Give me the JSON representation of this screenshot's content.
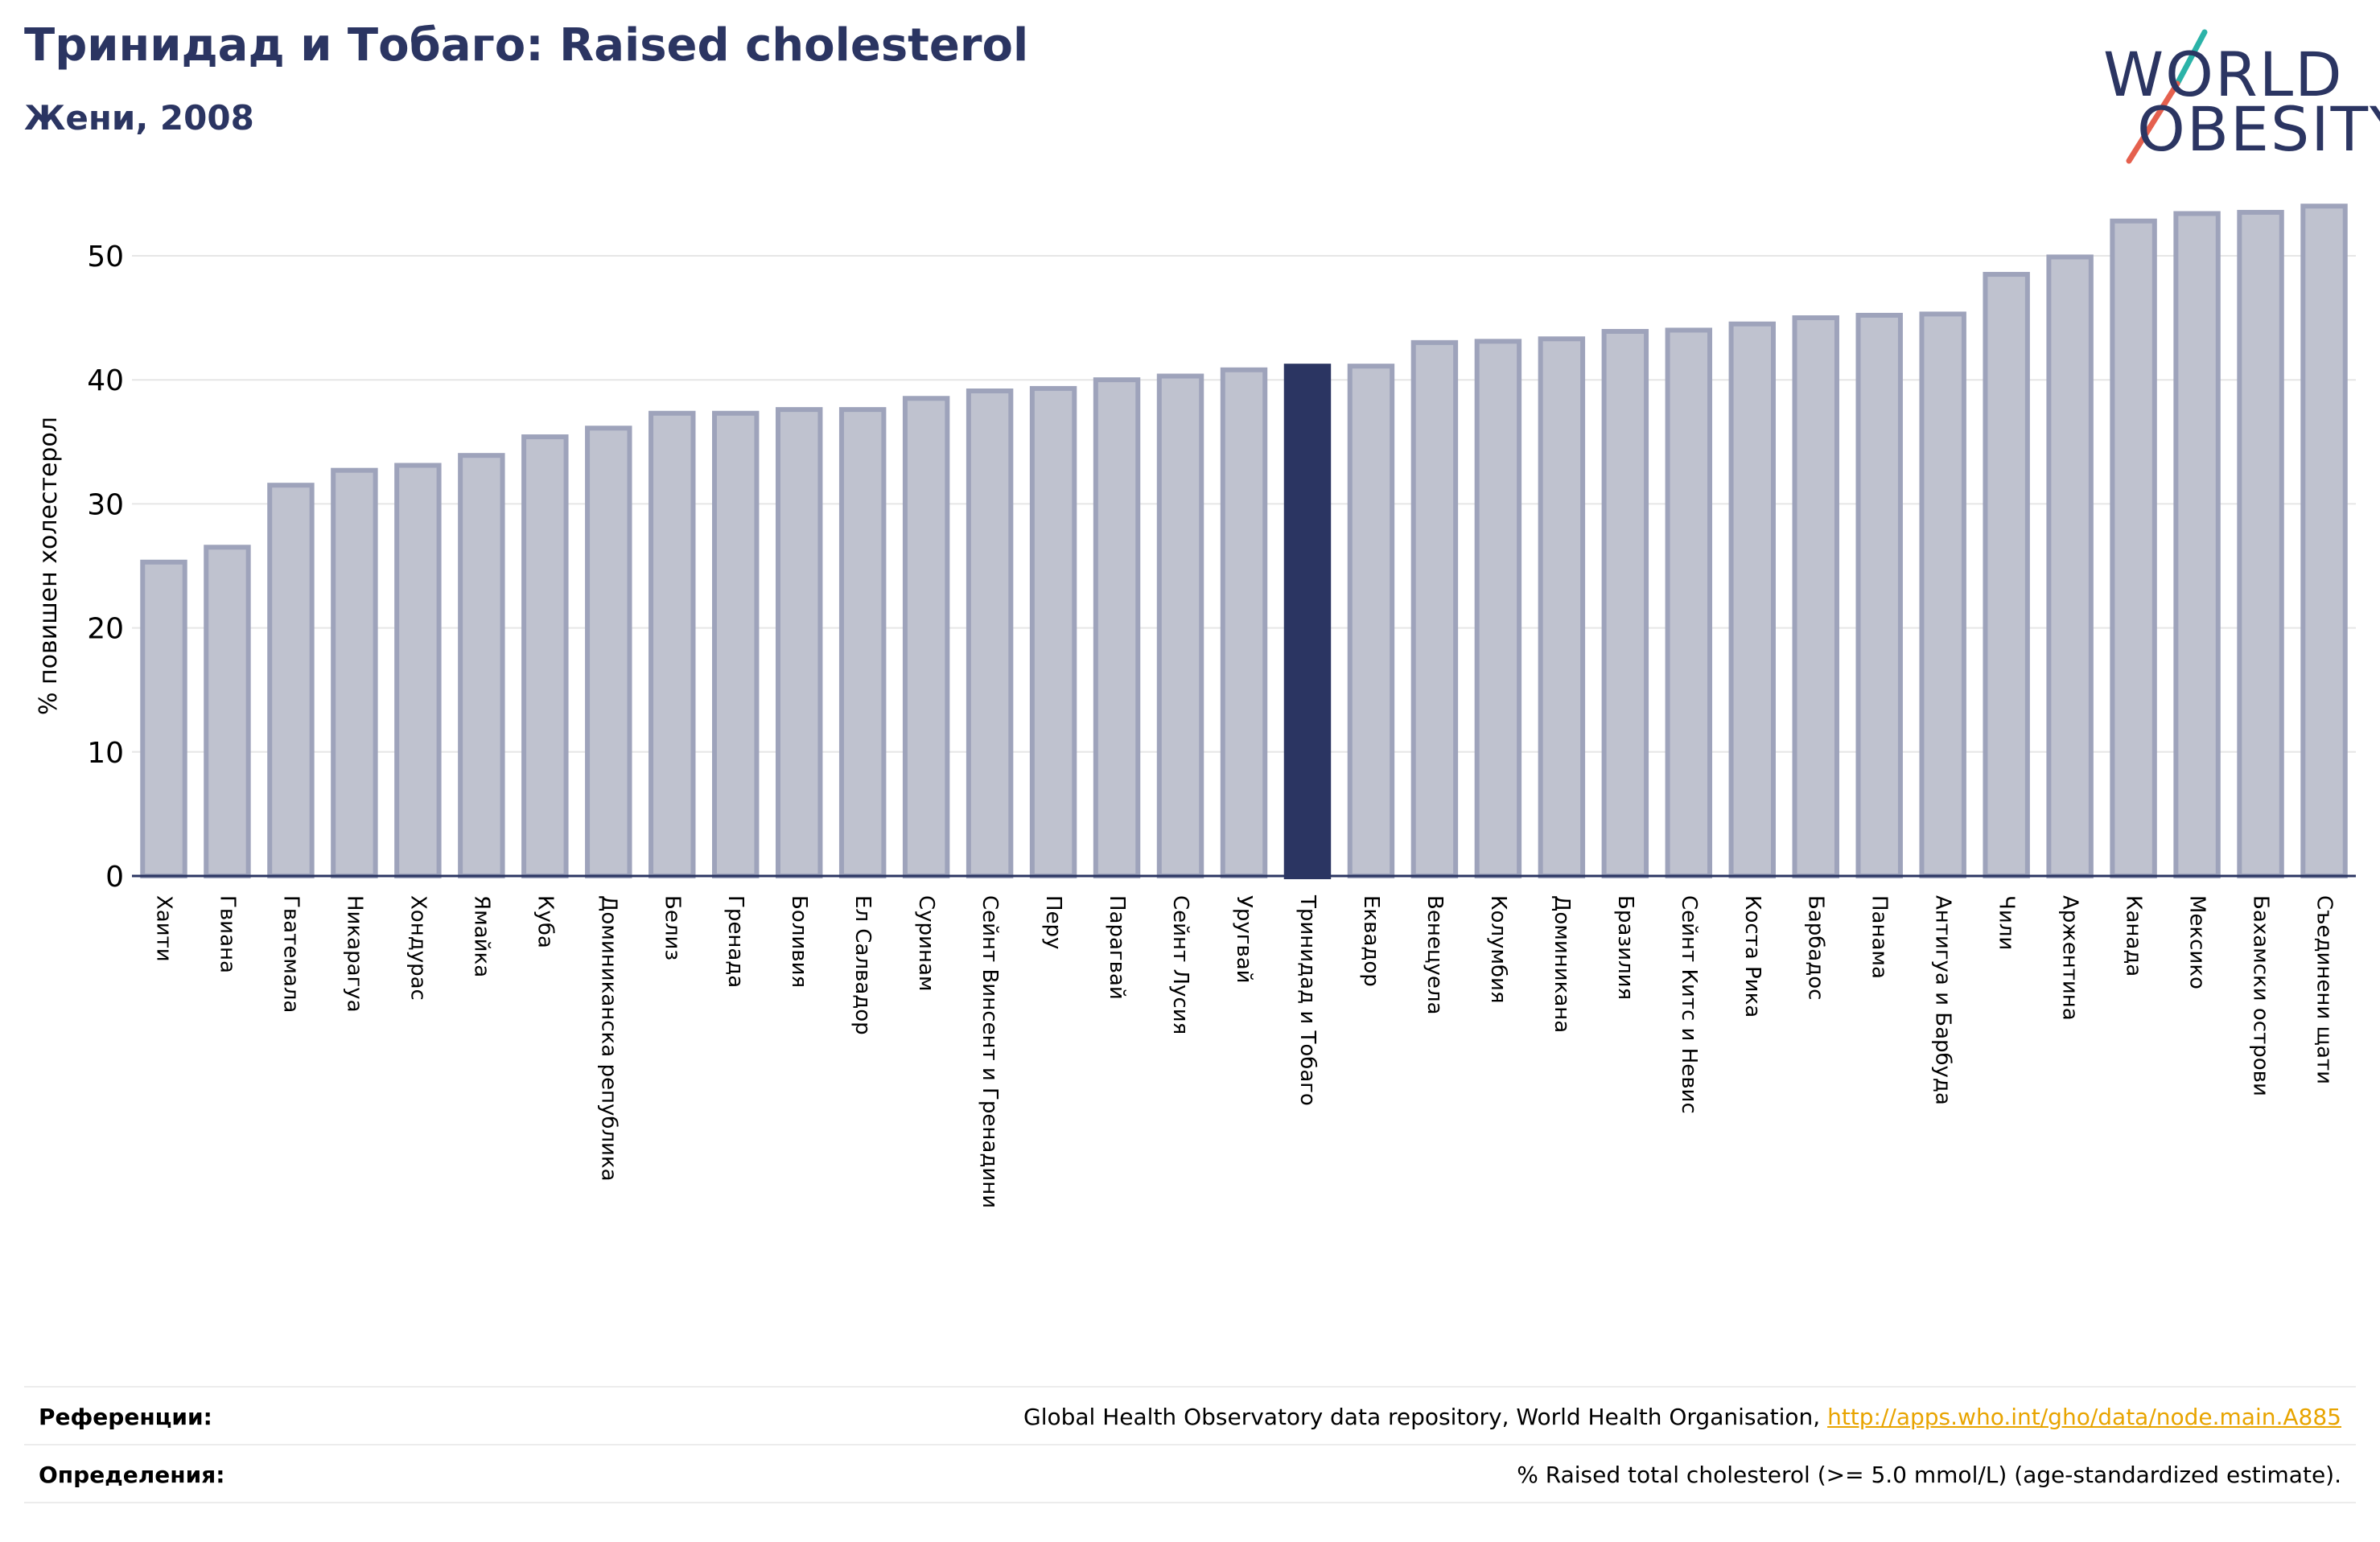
{
  "header": {
    "title": "Тринидад и Тобаго: Raised cholesterol",
    "subtitle": "Жени, 2008"
  },
  "logo": {
    "line1": "WORLD",
    "line2": "OBESITY",
    "colors": {
      "text": "#2b3562",
      "slash_teal": "#2bb3a8",
      "slash_red": "#e5604e"
    }
  },
  "chart_data": {
    "type": "bar",
    "title": "",
    "xlabel": "",
    "ylabel": "% повишен холестерол",
    "ylim": [
      0,
      55
    ],
    "yticks": [
      0,
      10,
      20,
      30,
      40,
      50
    ],
    "grid": true,
    "highlight": "Тринидад и Тобаго",
    "colors": {
      "bar": "#bfc2cf",
      "bar_edge": "#9ea3bb",
      "highlight": "#2b3562",
      "grid": "#e6e6e6",
      "axis": "#2b3562"
    },
    "categories": [
      "Хаити",
      "Гвиана",
      "Гватемала",
      "Никарагуа",
      "Хондурас",
      "Ямайка",
      "Куба",
      "Доминиканска република",
      "Белиз",
      "Гренада",
      "Боливия",
      "Ел Салвадор",
      "Суринам",
      "Сейнт Винсент и Гренадини",
      "Перу",
      "Парагвай",
      "Сейнт Лусия",
      "Уругвай",
      "Тринидад и Тобаго",
      "Еквадор",
      "Венецуела",
      "Колумбия",
      "Доминикана",
      "Бразилия",
      "Сейнт Китс и Невис",
      "Коста Рика",
      "Барбадос",
      "Панама",
      "Антигуа и Барбуда",
      "Чили",
      "Аржентина",
      "Канада",
      "Мексико",
      "Бахамски острови",
      "Съединени щати"
    ],
    "values": [
      25.5,
      26.7,
      31.7,
      32.9,
      33.3,
      34.1,
      35.6,
      36.3,
      37.5,
      37.5,
      37.8,
      37.8,
      38.7,
      39.3,
      39.5,
      40.2,
      40.5,
      41.0,
      41.3,
      41.3,
      43.2,
      43.3,
      43.5,
      44.1,
      44.2,
      44.7,
      45.2,
      45.4,
      45.5,
      48.7,
      50.1,
      53.0,
      53.6,
      53.7,
      54.2
    ]
  },
  "footer": {
    "references_label": "Референции:",
    "references_text": "Global Health Observatory data repository, World Health Organisation, ",
    "references_link": "http://apps.who.int/gho/data/node.main.A885",
    "definitions_label": "Определения:",
    "definitions_text": "% Raised total cholesterol (>= 5.0 mmol/L) (age-standardized estimate)."
  }
}
